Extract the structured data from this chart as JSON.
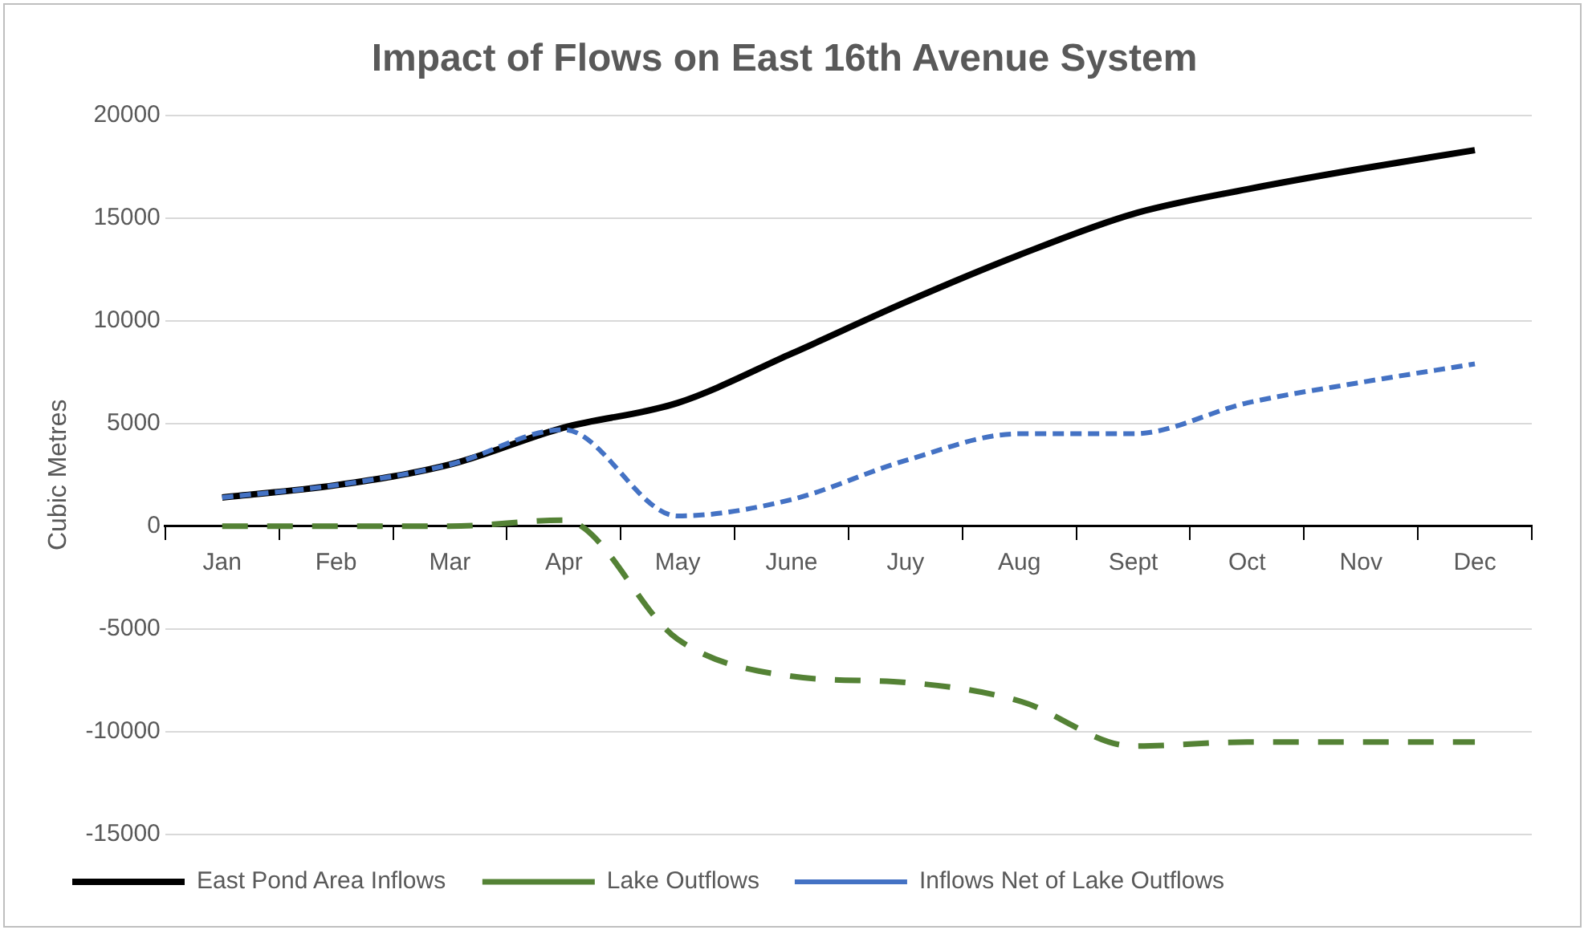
{
  "chart_data": {
    "type": "line",
    "title": "Impact of Flows on East 16th Avenue System",
    "ylabel": "Cubic Metres",
    "categories": [
      "Jan",
      "Feb",
      "Mar",
      "Apr",
      "May",
      "June",
      "Juy",
      "Aug",
      "Sept",
      "Oct",
      "Nov",
      "Dec"
    ],
    "series": [
      {
        "name": "East Pond Area Inflows",
        "color": "#000000",
        "line_style": "solid",
        "values": [
          1400,
          2000,
          3000,
          4800,
          6000,
          8400,
          10900,
          13200,
          15200,
          16400,
          17400,
          18300
        ]
      },
      {
        "name": "Lake Outflows",
        "color": "#548235",
        "line_style": "dashed",
        "values": [
          0,
          0,
          0,
          300,
          -5500,
          -7300,
          -7600,
          -8500,
          -10700,
          -10500,
          -10500,
          -10500
        ]
      },
      {
        "name": "Inflows Net of Lake Outflows",
        "color": "#4472c4",
        "line_style": "dotted",
        "values": [
          1400,
          2000,
          3000,
          4700,
          500,
          1300,
          3200,
          4500,
          4500,
          6000,
          7000,
          7900
        ]
      }
    ],
    "ylim": [
      -15000,
      20000
    ],
    "yticks": [
      -15000,
      -10000,
      -5000,
      0,
      5000,
      10000,
      15000,
      20000
    ],
    "grid": "y",
    "legend": "bottom",
    "marker": "none"
  }
}
